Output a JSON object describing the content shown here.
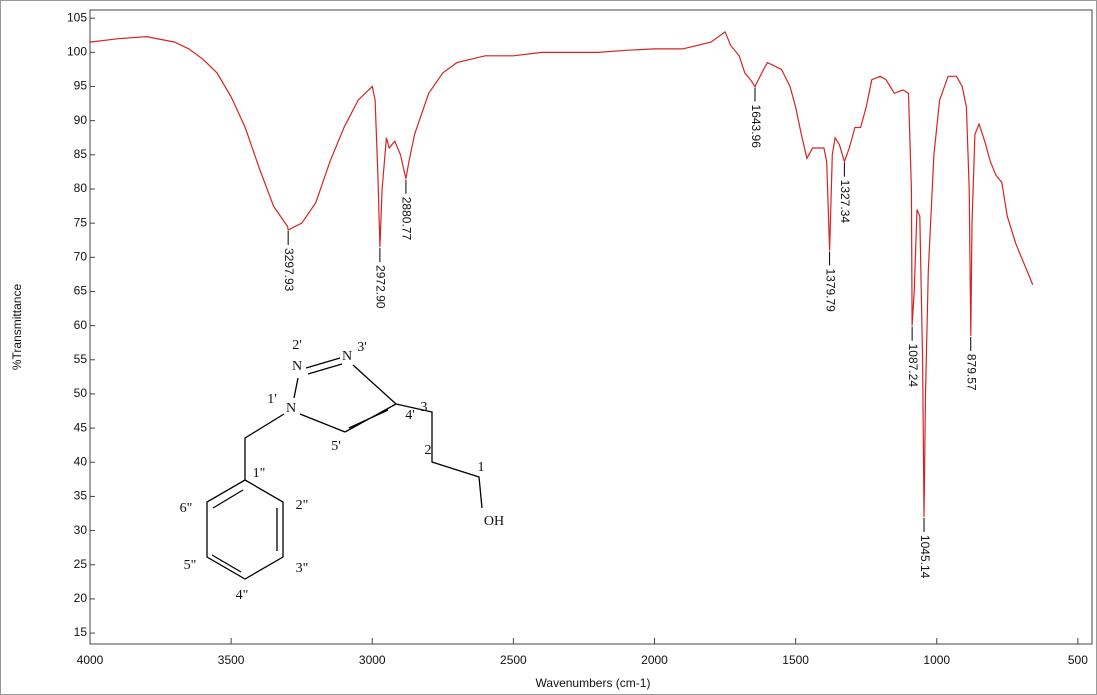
{
  "chart_data": {
    "type": "line",
    "x_label": "Wavenumbers (cm-1)",
    "y_label": "%Transmittance",
    "color": "#d42424",
    "xlim": [
      4000,
      450
    ],
    "ylim": [
      13.4,
      106.2
    ],
    "xticks": [
      4000,
      3500,
      3000,
      2500,
      2000,
      1500,
      1000,
      500
    ],
    "yticks": [
      15,
      20,
      25,
      30,
      35,
      40,
      45,
      50,
      55,
      60,
      65,
      70,
      75,
      80,
      85,
      90,
      95,
      100,
      105
    ],
    "x": [
      4000,
      3900,
      3800,
      3700,
      3650,
      3600,
      3550,
      3500,
      3450,
      3400,
      3350,
      3300,
      3297.93,
      3250,
      3200,
      3150,
      3100,
      3050,
      3000,
      2990,
      2980,
      2972.9,
      2965,
      2950,
      2940,
      2920,
      2900,
      2880.77,
      2870,
      2850,
      2800,
      2750,
      2700,
      2600,
      2500,
      2400,
      2300,
      2200,
      2100,
      2000,
      1900,
      1800,
      1750,
      1730,
      1700,
      1680,
      1660,
      1643.96,
      1620,
      1600,
      1550,
      1520,
      1500,
      1480,
      1460,
      1440,
      1420,
      1400,
      1390,
      1379.79,
      1370,
      1360,
      1345,
      1327.34,
      1310,
      1290,
      1270,
      1250,
      1230,
      1200,
      1180,
      1150,
      1120,
      1100,
      1090,
      1087.24,
      1080,
      1070,
      1060,
      1050,
      1045.14,
      1040,
      1030,
      1010,
      990,
      960,
      930,
      910,
      895,
      885,
      879.57,
      875,
      865,
      850,
      830,
      810,
      790,
      770,
      750,
      720,
      700,
      680,
      660
    ],
    "values": [
      101.5,
      102,
      102.3,
      101.5,
      100.5,
      99,
      97,
      93.5,
      89,
      83,
      77.5,
      74.5,
      74,
      75,
      78,
      84,
      89,
      93,
      95,
      93,
      82,
      71.5,
      80,
      87.5,
      86,
      87,
      85,
      81.5,
      84,
      88,
      94,
      97,
      98.5,
      99.5,
      99.5,
      100,
      100,
      100,
      100.3,
      100.5,
      100.5,
      101.5,
      103,
      101,
      99.5,
      97,
      96,
      95,
      97,
      98.5,
      97.5,
      95,
      92,
      88,
      84.5,
      86,
      86,
      86,
      84,
      71,
      85,
      87.5,
      86.5,
      84,
      86,
      89,
      89,
      92,
      96,
      96.5,
      96,
      94,
      94.5,
      94,
      80,
      60,
      65,
      77,
      76,
      55,
      32,
      50,
      68,
      85,
      93,
      96.5,
      96.5,
      95,
      92,
      80,
      58.5,
      75,
      88,
      89.5,
      87,
      84,
      82,
      81,
      76,
      72,
      70,
      68,
      66
    ],
    "annotations": [
      {
        "value": 3297.93,
        "label": "3297.93"
      },
      {
        "value": 2972.9,
        "label": "2972.90"
      },
      {
        "value": 2880.77,
        "label": "2880.77"
      },
      {
        "value": 1643.96,
        "label": "1643.96"
      },
      {
        "value": 1379.79,
        "label": "1379.79"
      },
      {
        "value": 1327.34,
        "label": "1327.34"
      },
      {
        "value": 1087.24,
        "label": "1087.24"
      },
      {
        "value": 1045.14,
        "label": "1045.14"
      },
      {
        "value": 879.57,
        "label": "879.57"
      }
    ],
    "structure_labels": [
      "2'",
      "N",
      "N",
      "3'",
      "1'",
      "N",
      "4'",
      "5'",
      "3",
      "2",
      "1",
      "OH",
      "1\"",
      "2\"",
      "6\"",
      "5\"",
      "3\"",
      "4\""
    ]
  }
}
